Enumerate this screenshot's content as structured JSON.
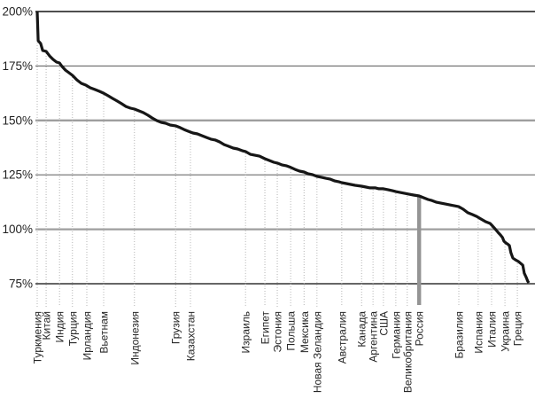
{
  "chart_data": {
    "type": "line",
    "description": "Sorted descending curve of country values in percent; Russia highlighted with a vertical gray bar",
    "grid": "horizontal",
    "legend": "none",
    "colors": {
      "curve": "#161616",
      "highlight_bar": "#949494",
      "leader_dots": "#b4b4b4",
      "grid_major_gray": "#9e9e9e",
      "grid_minor_dark": "#4a4a4a",
      "axis_text": "#1f1f1f"
    },
    "y_axis": {
      "tick_labels": [
        "200%",
        "175%",
        "150%",
        "125%",
        "100%",
        "75%"
      ],
      "tick_values": [
        200,
        175,
        150,
        125,
        100,
        75
      ],
      "ylim": [
        75,
        200
      ]
    },
    "highlight_country": "Россия",
    "labeled_points": [
      {
        "label": "Туркмения",
        "x": 0.0,
        "value": 200.0
      },
      {
        "label": "Китай",
        "x": 0.018,
        "value": 181.7
      },
      {
        "label": "Индия",
        "x": 0.045,
        "value": 176.4
      },
      {
        "label": "Турция",
        "x": 0.071,
        "value": 170.7
      },
      {
        "label": "Ирландия",
        "x": 0.1,
        "value": 166.2
      },
      {
        "label": "Вьетнам",
        "x": 0.134,
        "value": 162.5
      },
      {
        "label": "Индонезия",
        "x": 0.196,
        "value": 155.2
      },
      {
        "label": "Грузия",
        "x": 0.279,
        "value": 147.5
      },
      {
        "label": "Казахстан",
        "x": 0.309,
        "value": 145.0
      },
      {
        "label": "Израиль",
        "x": 0.42,
        "value": 135.7
      },
      {
        "label": "Египет",
        "x": 0.459,
        "value": 132.4
      },
      {
        "label": "Эстония",
        "x": 0.484,
        "value": 130.4
      },
      {
        "label": "Польша",
        "x": 0.511,
        "value": 128.4
      },
      {
        "label": "Мексика",
        "x": 0.538,
        "value": 126.3
      },
      {
        "label": "Новая Зеландия",
        "x": 0.564,
        "value": 124.3
      },
      {
        "label": "Австралия",
        "x": 0.614,
        "value": 121.4
      },
      {
        "label": "Канада",
        "x": 0.654,
        "value": 119.8
      },
      {
        "label": "Аргентина",
        "x": 0.677,
        "value": 119.0
      },
      {
        "label": "США",
        "x": 0.698,
        "value": 118.6
      },
      {
        "label": "Германия",
        "x": 0.723,
        "value": 117.3
      },
      {
        "label": "Великобритания",
        "x": 0.746,
        "value": 116.1
      },
      {
        "label": "Россия",
        "x": 0.77,
        "value": 115.3,
        "highlight": true
      },
      {
        "label": "Бразилия",
        "x": 0.85,
        "value": 110.4
      },
      {
        "label": "Испания",
        "x": 0.889,
        "value": 105.6
      },
      {
        "label": "Италия",
        "x": 0.916,
        "value": 101.9
      },
      {
        "label": "Украина",
        "x": 0.943,
        "value": 94.1
      },
      {
        "label": "Греция",
        "x": 0.968,
        "value": 85.2
      }
    ],
    "curve": [
      [
        0.0,
        200.0
      ],
      [
        0.002,
        186.6
      ],
      [
        0.007,
        185.3
      ],
      [
        0.011,
        182.1
      ],
      [
        0.018,
        181.7
      ],
      [
        0.025,
        179.6
      ],
      [
        0.032,
        178.0
      ],
      [
        0.039,
        176.8
      ],
      [
        0.045,
        176.4
      ],
      [
        0.05,
        174.8
      ],
      [
        0.057,
        173.1
      ],
      [
        0.064,
        171.9
      ],
      [
        0.071,
        170.7
      ],
      [
        0.08,
        168.6
      ],
      [
        0.089,
        167.0
      ],
      [
        0.098,
        166.2
      ],
      [
        0.107,
        165.0
      ],
      [
        0.116,
        164.2
      ],
      [
        0.125,
        163.4
      ],
      [
        0.134,
        162.5
      ],
      [
        0.143,
        161.3
      ],
      [
        0.152,
        160.1
      ],
      [
        0.161,
        158.9
      ],
      [
        0.17,
        157.7
      ],
      [
        0.179,
        156.4
      ],
      [
        0.188,
        155.6
      ],
      [
        0.196,
        155.2
      ],
      [
        0.205,
        154.4
      ],
      [
        0.214,
        153.6
      ],
      [
        0.223,
        152.4
      ],
      [
        0.232,
        151.1
      ],
      [
        0.241,
        149.9
      ],
      [
        0.25,
        149.1
      ],
      [
        0.259,
        148.7
      ],
      [
        0.268,
        147.9
      ],
      [
        0.279,
        147.5
      ],
      [
        0.288,
        146.7
      ],
      [
        0.296,
        145.8
      ],
      [
        0.305,
        145.0
      ],
      [
        0.314,
        144.2
      ],
      [
        0.323,
        143.8
      ],
      [
        0.332,
        143.0
      ],
      [
        0.341,
        142.2
      ],
      [
        0.35,
        141.4
      ],
      [
        0.359,
        141.0
      ],
      [
        0.368,
        140.1
      ],
      [
        0.377,
        138.9
      ],
      [
        0.386,
        138.1
      ],
      [
        0.395,
        137.3
      ],
      [
        0.404,
        136.9
      ],
      [
        0.413,
        136.1
      ],
      [
        0.42,
        135.7
      ],
      [
        0.43,
        134.4
      ],
      [
        0.439,
        134.0
      ],
      [
        0.448,
        133.6
      ],
      [
        0.459,
        132.4
      ],
      [
        0.468,
        131.6
      ],
      [
        0.477,
        130.8
      ],
      [
        0.484,
        130.4
      ],
      [
        0.493,
        129.6
      ],
      [
        0.502,
        129.2
      ],
      [
        0.511,
        128.4
      ],
      [
        0.52,
        127.5
      ],
      [
        0.529,
        126.7
      ],
      [
        0.538,
        126.3
      ],
      [
        0.546,
        125.5
      ],
      [
        0.555,
        125.1
      ],
      [
        0.564,
        124.3
      ],
      [
        0.573,
        123.9
      ],
      [
        0.582,
        123.4
      ],
      [
        0.591,
        123.0
      ],
      [
        0.6,
        122.2
      ],
      [
        0.609,
        121.8
      ],
      [
        0.614,
        121.4
      ],
      [
        0.623,
        121.0
      ],
      [
        0.632,
        120.6
      ],
      [
        0.641,
        120.2
      ],
      [
        0.654,
        119.8
      ],
      [
        0.663,
        119.4
      ],
      [
        0.671,
        119.0
      ],
      [
        0.682,
        119.0
      ],
      [
        0.689,
        118.6
      ],
      [
        0.698,
        118.6
      ],
      [
        0.707,
        118.2
      ],
      [
        0.716,
        117.7
      ],
      [
        0.723,
        117.3
      ],
      [
        0.732,
        116.9
      ],
      [
        0.741,
        116.5
      ],
      [
        0.75,
        116.1
      ],
      [
        0.759,
        115.7
      ],
      [
        0.77,
        115.3
      ],
      [
        0.779,
        114.5
      ],
      [
        0.788,
        113.7
      ],
      [
        0.796,
        113.2
      ],
      [
        0.805,
        112.4
      ],
      [
        0.814,
        112.0
      ],
      [
        0.823,
        111.6
      ],
      [
        0.832,
        111.2
      ],
      [
        0.841,
        110.8
      ],
      [
        0.85,
        110.4
      ],
      [
        0.859,
        109.2
      ],
      [
        0.868,
        107.6
      ],
      [
        0.877,
        106.8
      ],
      [
        0.886,
        105.9
      ],
      [
        0.895,
        104.7
      ],
      [
        0.904,
        103.5
      ],
      [
        0.913,
        102.7
      ],
      [
        0.918,
        101.5
      ],
      [
        0.923,
        100.2
      ],
      [
        0.929,
        98.6
      ],
      [
        0.934,
        97.4
      ],
      [
        0.938,
        96.2
      ],
      [
        0.941,
        94.5
      ],
      [
        0.945,
        93.7
      ],
      [
        0.948,
        93.3
      ],
      [
        0.952,
        92.5
      ],
      [
        0.955,
        89.2
      ],
      [
        0.959,
        86.8
      ],
      [
        0.964,
        86.0
      ],
      [
        0.97,
        85.2
      ],
      [
        0.975,
        84.3
      ],
      [
        0.979,
        83.5
      ],
      [
        0.982,
        79.8
      ],
      [
        0.986,
        77.8
      ],
      [
        0.989,
        76.2
      ],
      [
        0.991,
        75.4
      ]
    ]
  }
}
